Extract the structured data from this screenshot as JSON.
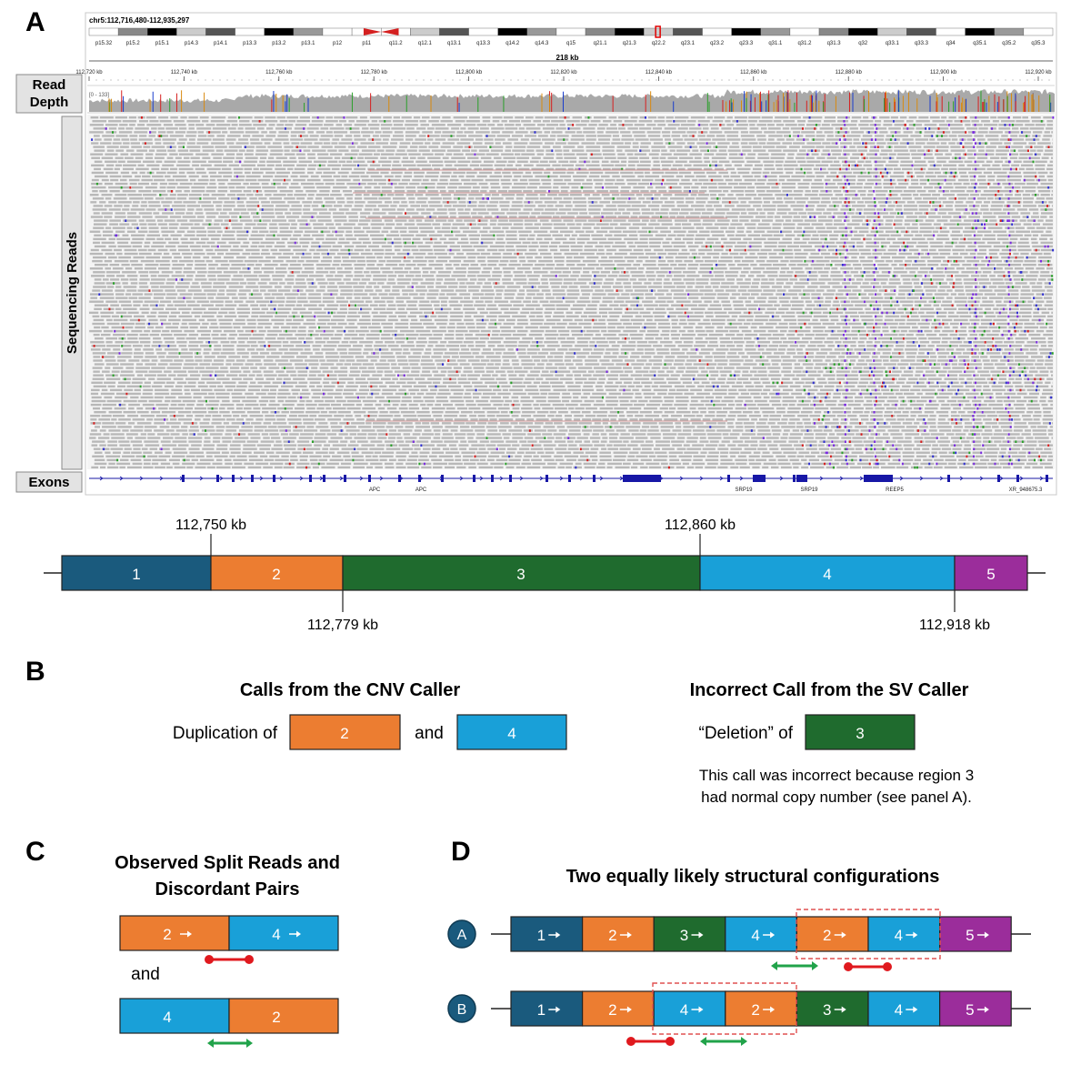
{
  "panels": {
    "a": "A",
    "b": "B",
    "c": "C",
    "d": "D"
  },
  "colors": {
    "region1": "#1a5a7d",
    "region2": "#ec7d31",
    "region3": "#1f6b2e",
    "region4": "#19a0d8",
    "region5": "#9b2d9b",
    "split": "#e0191e",
    "discordant": "#21a34a",
    "dashbox": "#e05050",
    "exon": "#1717a6"
  },
  "igv": {
    "locus": "chr5:112,716,480-112,935,297",
    "bands": [
      "p15.32",
      "p15.2",
      "p15.1",
      "p14.3",
      "p14.1",
      "p13.3",
      "p13.2",
      "p13.1",
      "p12",
      "p11",
      "q11.2",
      "q12.1",
      "q13.1",
      "q13.3",
      "q14.2",
      "q14.3",
      "q15",
      "q21.1",
      "q21.3",
      "q22.2",
      "q23.1",
      "q23.2",
      "q23.3",
      "q31.1",
      "q31.2",
      "q31.3",
      "q32",
      "q33.1",
      "q33.3",
      "q34",
      "q35.1",
      "q35.2",
      "q35.3"
    ],
    "span": "218 kb",
    "ticks": [
      "112,720 kb",
      "112,740 kb",
      "112,760 kb",
      "112,780 kb",
      "112,800 kb",
      "112,820 kb",
      "112,840 kb",
      "112,860 kb",
      "112,880 kb",
      "112,900 kb",
      "112,920 kb"
    ],
    "range": "[0 - 133]",
    "genes": [
      "APC",
      "APC",
      "SRP19",
      "SRP19",
      "REEP5",
      "XR_948675.3"
    ]
  },
  "labels": {
    "read_depth_1": "Read",
    "read_depth_2": "Depth",
    "sequencing_reads": "Sequencing Reads",
    "exons": "Exons"
  },
  "regions": {
    "segments": [
      "1",
      "2",
      "3",
      "4",
      "5"
    ],
    "coords": {
      "c1": "112,750 kb",
      "c2": "112,779 kb",
      "c3": "112,860 kb",
      "c4": "112,918 kb"
    }
  },
  "panel_b": {
    "cnv_title": "Calls from the CNV Caller",
    "dup_prefix": "Duplication of",
    "dup_a": "2",
    "and_text": "and",
    "dup_b": "4",
    "sv_title": "Incorrect Call from the SV Caller",
    "del_prefix": "“Deletion” of",
    "del_region": "3",
    "note_1": "This call was incorrect because region 3",
    "note_2": "had normal copy number (see panel A)."
  },
  "panel_c": {
    "title_1": "Observed Split Reads and",
    "title_2": "Discordant Pairs",
    "row1": [
      "2",
      "4"
    ],
    "and_text": "and",
    "row2": [
      "4",
      "2"
    ]
  },
  "panel_d": {
    "title": "Two equally likely structural configurations",
    "configA": {
      "label": "A",
      "segments": [
        "1",
        "2",
        "3",
        "4",
        "2",
        "4",
        "5"
      ]
    },
    "configB": {
      "label": "B",
      "segments": [
        "1",
        "2",
        "4",
        "2",
        "3",
        "4",
        "5"
      ]
    }
  }
}
